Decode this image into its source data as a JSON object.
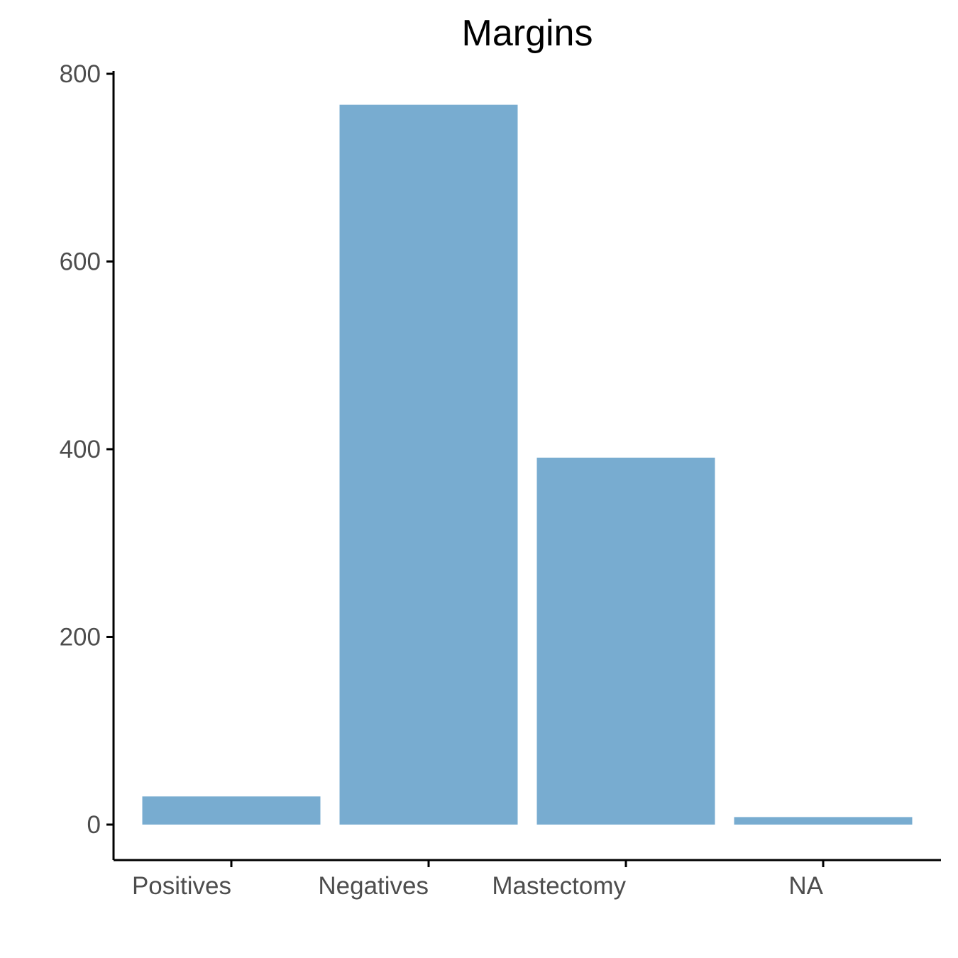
{
  "chart_data": {
    "type": "bar",
    "title": "Margins",
    "xlabel": "",
    "ylabel": "",
    "categories": [
      "Positives",
      "Negatives",
      "Mastectomy",
      "NA"
    ],
    "values": [
      30,
      767,
      391,
      8
    ],
    "ylim": [
      -37,
      800
    ],
    "yticks": [
      0,
      200,
      400,
      600,
      800
    ],
    "grid": false,
    "bar_color": "#78acd0"
  }
}
